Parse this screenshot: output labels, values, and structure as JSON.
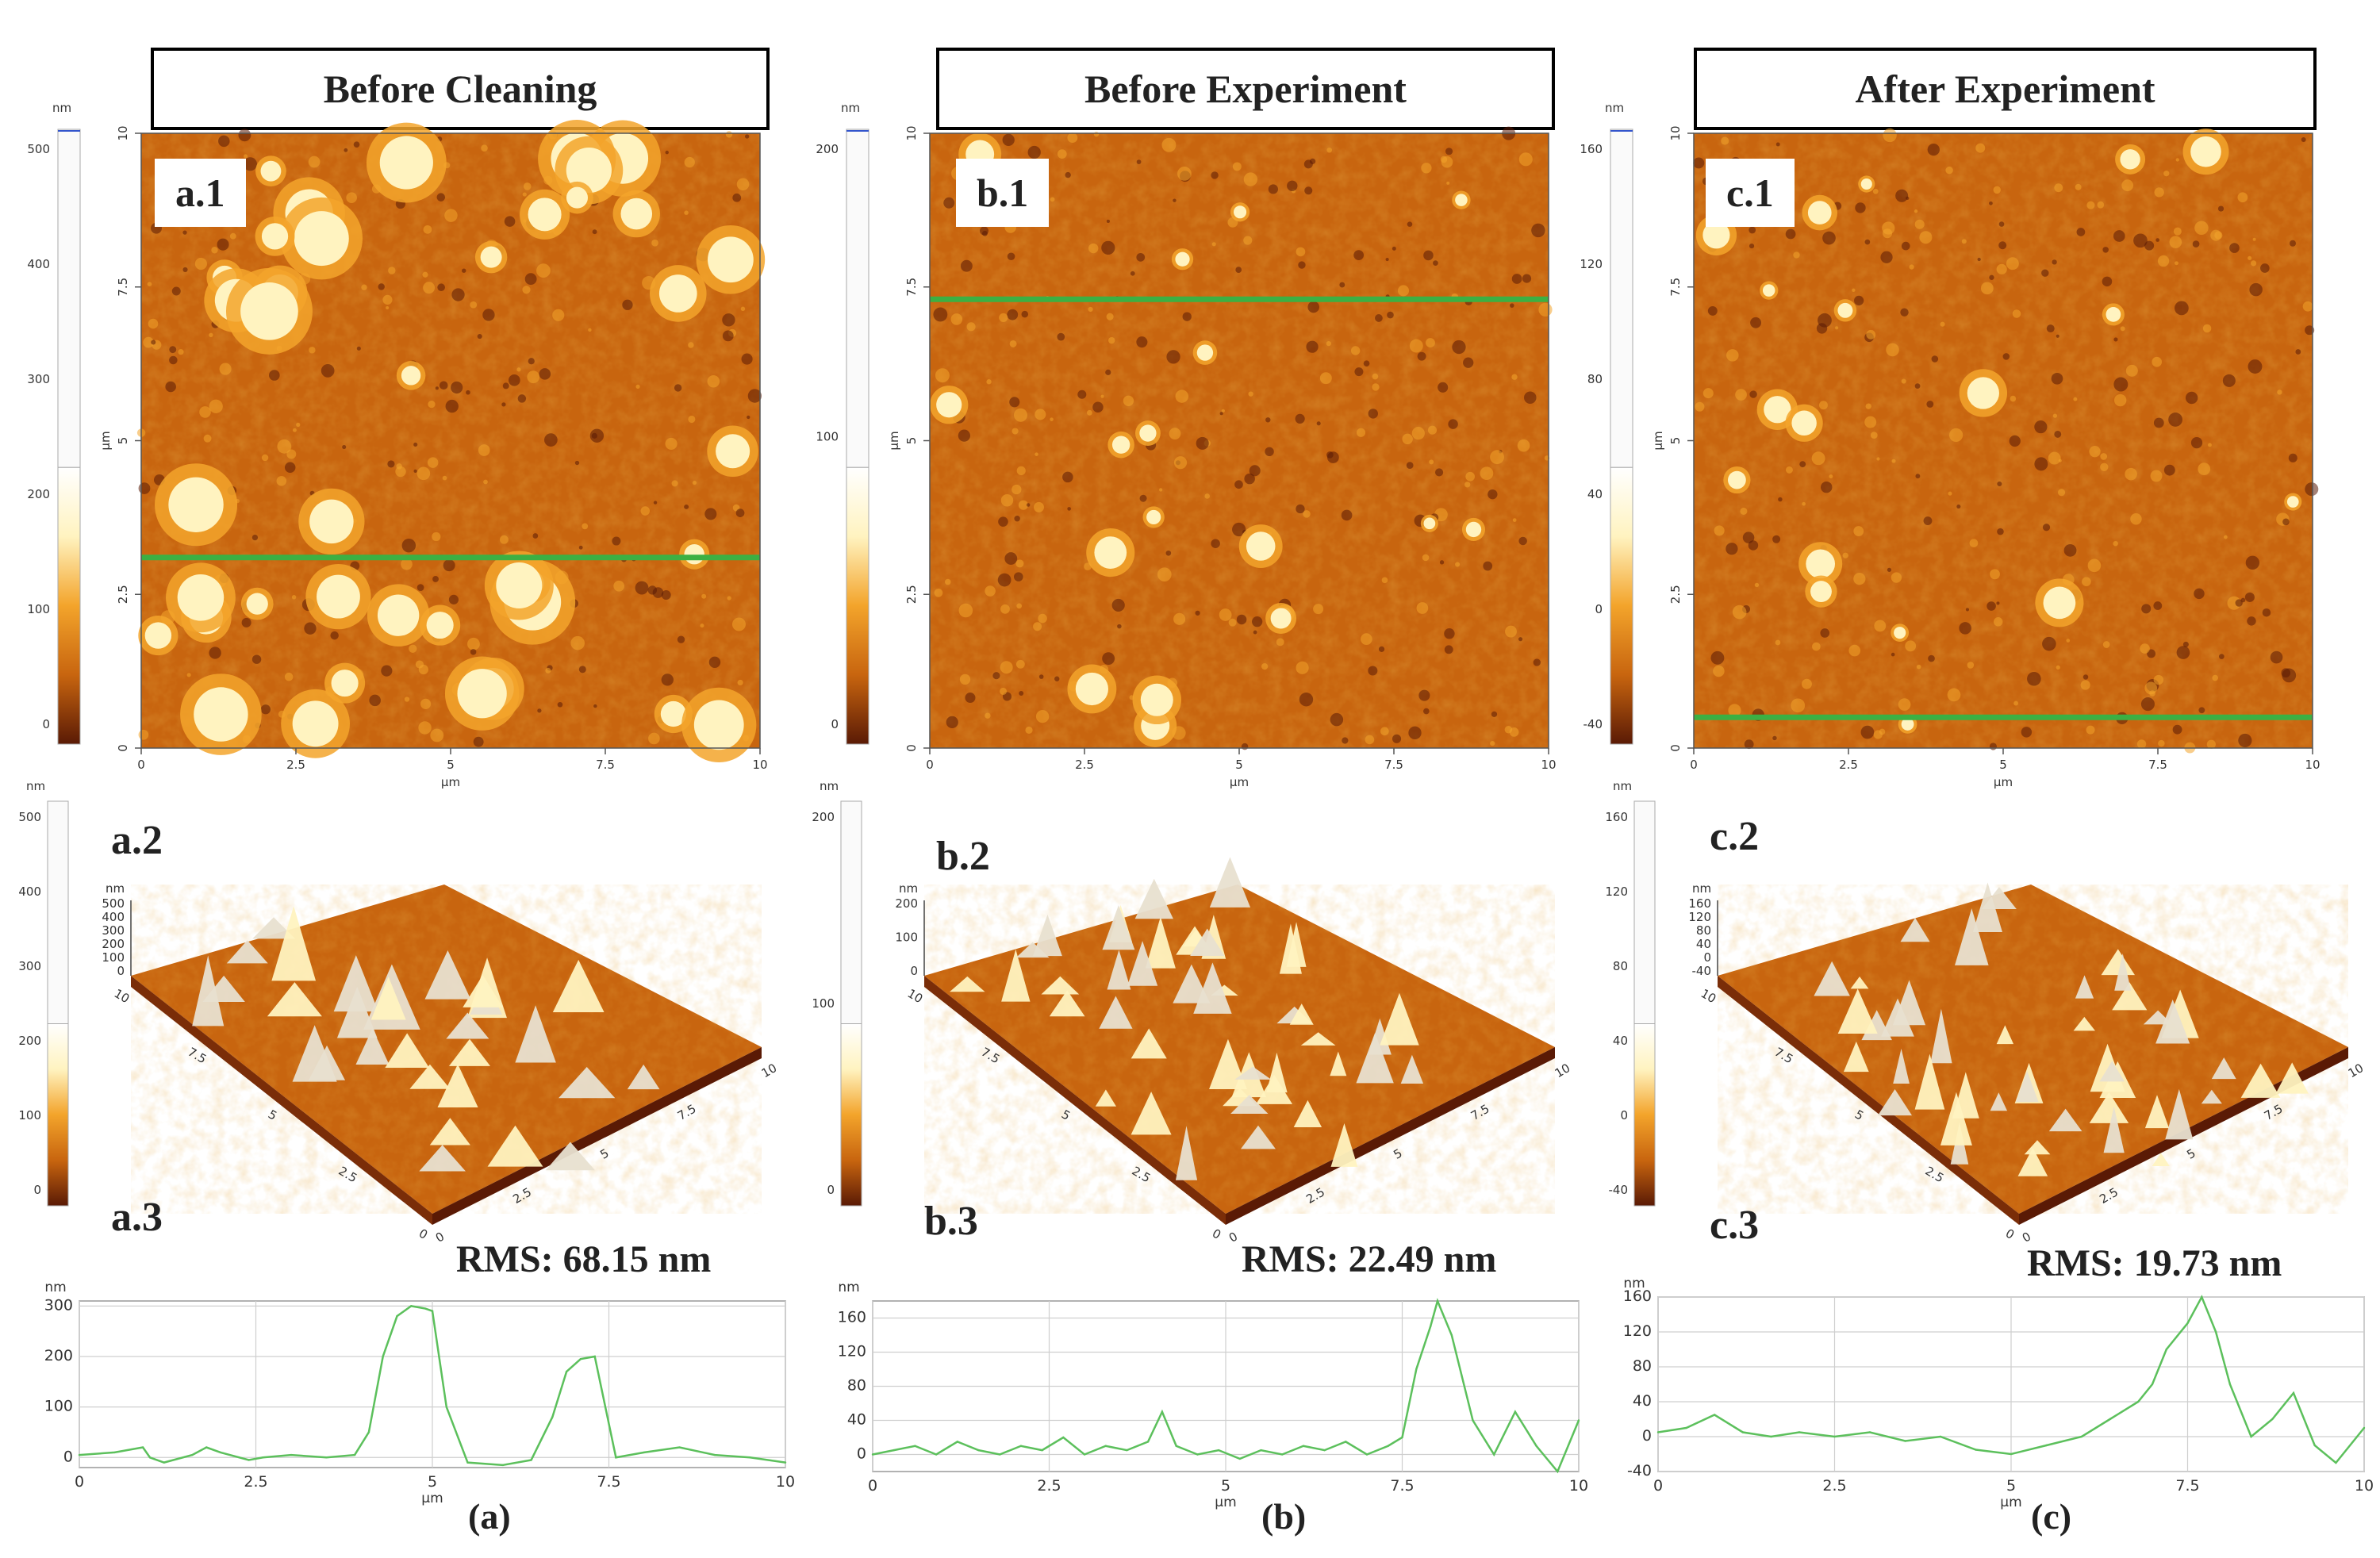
{
  "panels": [
    {
      "id": "a",
      "title": "Before Cleaning",
      "map_label": "a.1",
      "surface_label": "a.2",
      "profile_label": "a.3",
      "rms": "RMS: 68.15 nm",
      "subfig": "(a)",
      "colorbar_unit": "nm",
      "colorbar_ticks": [
        "500",
        "400",
        "300",
        "200",
        "100",
        "0"
      ],
      "surface_colorbar_ticks": [
        "500",
        "400",
        "300",
        "200",
        "100",
        "0"
      ],
      "map_axis_unit": "µm",
      "map_ticks": [
        "0",
        "2.5",
        "5",
        "7.5",
        "10"
      ],
      "surface_z_ticks": [
        "500",
        "400",
        "300",
        "200",
        "100",
        "0"
      ],
      "surface_xy_ticks": [
        "0",
        "2.5",
        "5",
        "7.5",
        "10"
      ],
      "line_position": 0.69
    },
    {
      "id": "b",
      "title": "Before Experiment",
      "map_label": "b.1",
      "surface_label": "b.2",
      "profile_label": "b.3",
      "rms": "RMS: 22.49 nm",
      "subfig": "(b)",
      "colorbar_unit": "nm",
      "colorbar_ticks": [
        "200",
        "100",
        "0"
      ],
      "surface_colorbar_ticks": [
        "200",
        "100",
        "0"
      ],
      "map_axis_unit": "µm",
      "map_ticks": [
        "0",
        "2.5",
        "5",
        "7.5",
        "10"
      ],
      "surface_z_ticks": [
        "200",
        "100",
        "0"
      ],
      "surface_xy_ticks": [
        "0",
        "2.5",
        "5",
        "7.5",
        "10"
      ],
      "line_position": 0.27
    },
    {
      "id": "c",
      "title": "After Experiment",
      "map_label": "c.1",
      "surface_label": "c.2",
      "profile_label": "c.3",
      "rms": "RMS: 19.73 nm",
      "subfig": "(c)",
      "colorbar_unit": "nm",
      "colorbar_ticks": [
        "160",
        "120",
        "80",
        "40",
        "0",
        "-40"
      ],
      "surface_colorbar_ticks": [
        "160",
        "120",
        "80",
        "40",
        "0",
        "-40"
      ],
      "map_axis_unit": "µm",
      "map_ticks": [
        "0",
        "2.5",
        "5",
        "7.5",
        "10"
      ],
      "surface_z_ticks": [
        "160",
        "120",
        "80",
        "40",
        "0",
        "-40"
      ],
      "surface_xy_ticks": [
        "0",
        "2.5",
        "5",
        "7.5",
        "10"
      ],
      "line_position": 0.95
    }
  ],
  "colors": {
    "afm_dark": "#5a1a05",
    "afm_mid": "#c8650f",
    "afm_light": "#f3a42b",
    "afm_high": "#fff3c0",
    "profile_line": "#5cc05c",
    "scan_line": "#3cb043"
  },
  "chart_data": [
    {
      "type": "line",
      "id": "a.3",
      "ylabel": "nm",
      "xlabel": "µm",
      "xlim": [
        0,
        10
      ],
      "ylim": [
        -20,
        310
      ],
      "yticks": [
        0,
        100,
        200,
        300
      ],
      "xticks": [
        0,
        2.5,
        5,
        7.5,
        10
      ],
      "grid": true,
      "x": [
        0,
        0.5,
        0.9,
        1.0,
        1.2,
        1.6,
        1.8,
        2.0,
        2.4,
        2.6,
        3.0,
        3.5,
        3.9,
        4.1,
        4.3,
        4.5,
        4.7,
        4.9,
        5.0,
        5.2,
        5.5,
        6.0,
        6.4,
        6.7,
        6.9,
        7.1,
        7.3,
        7.6,
        8.0,
        8.5,
        9.0,
        9.5,
        10
      ],
      "y": [
        5,
        10,
        20,
        0,
        -10,
        5,
        20,
        10,
        -5,
        0,
        5,
        0,
        5,
        50,
        200,
        280,
        300,
        295,
        290,
        100,
        -10,
        -15,
        -5,
        80,
        170,
        195,
        200,
        0,
        10,
        20,
        5,
        0,
        -10
      ]
    },
    {
      "type": "line",
      "id": "b.3",
      "ylabel": "nm",
      "xlabel": "µm",
      "xlim": [
        0,
        10
      ],
      "ylim": [
        -20,
        180
      ],
      "yticks": [
        0,
        40,
        80,
        120,
        160
      ],
      "xticks": [
        0,
        2.5,
        5,
        7.5,
        10
      ],
      "grid": true,
      "x": [
        0,
        0.3,
        0.6,
        0.9,
        1.2,
        1.5,
        1.8,
        2.1,
        2.4,
        2.7,
        3.0,
        3.3,
        3.6,
        3.9,
        4.1,
        4.3,
        4.6,
        4.9,
        5.2,
        5.5,
        5.8,
        6.1,
        6.4,
        6.7,
        7.0,
        7.3,
        7.5,
        7.7,
        7.9,
        8.0,
        8.2,
        8.5,
        8.8,
        9.1,
        9.4,
        9.7,
        10
      ],
      "y": [
        0,
        5,
        10,
        0,
        15,
        5,
        0,
        10,
        5,
        20,
        0,
        10,
        5,
        15,
        50,
        10,
        0,
        5,
        -5,
        5,
        0,
        10,
        5,
        15,
        0,
        10,
        20,
        100,
        150,
        180,
        140,
        40,
        0,
        50,
        10,
        -20,
        40
      ]
    },
    {
      "type": "line",
      "id": "c.3",
      "ylabel": "nm",
      "xlabel": "µm",
      "xlim": [
        0,
        10
      ],
      "ylim": [
        -40,
        160
      ],
      "yticks": [
        -40,
        0,
        40,
        80,
        120,
        160
      ],
      "xticks": [
        0,
        2.5,
        5,
        7.5,
        10
      ],
      "grid": true,
      "x": [
        0,
        0.4,
        0.8,
        1.2,
        1.6,
        2.0,
        2.5,
        3.0,
        3.5,
        4.0,
        4.5,
        5.0,
        5.5,
        6.0,
        6.4,
        6.8,
        7.0,
        7.2,
        7.5,
        7.7,
        7.9,
        8.1,
        8.4,
        8.7,
        9.0,
        9.3,
        9.6,
        10
      ],
      "y": [
        5,
        10,
        25,
        5,
        0,
        5,
        0,
        5,
        -5,
        0,
        -15,
        -20,
        -10,
        0,
        20,
        40,
        60,
        100,
        130,
        160,
        120,
        60,
        0,
        20,
        50,
        -10,
        -30,
        10
      ]
    }
  ]
}
